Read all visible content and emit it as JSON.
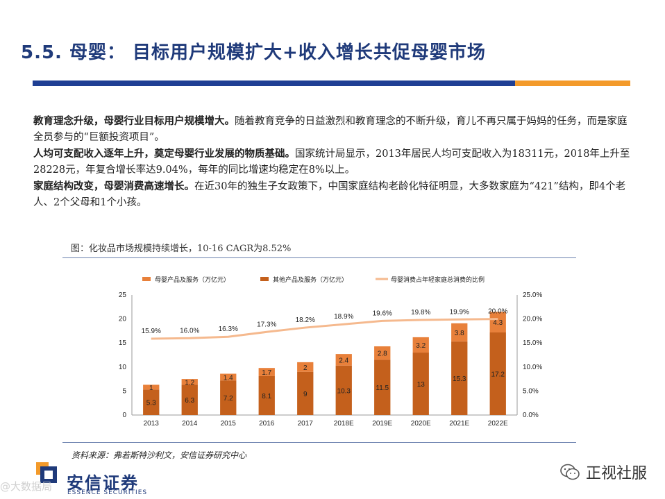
{
  "page": {
    "title": "5.5. 母婴： 目标用户规模扩大+收入增长共促母婴市场",
    "paragraphs": [
      {
        "bold": "教育理念升级，母婴行业目标用户规模增大。",
        "text": "随着教育竞争的日益激烈和教育理念的不断升级，育儿不再只属于妈妈的任务，而是家庭全员参与的“巨额投资项目”。"
      },
      {
        "bold": "人均可支配收入逐年上升，奠定母婴行业发展的物质基础。",
        "text": "国家统计局显示，2013年居民人均可支配收入为18311元，2018年上升至28228元，年复合增长率达9.04%，每年的同比增速均稳定在8%以上。"
      },
      {
        "bold": "家庭结构改变，母婴消费高速增长。",
        "text": "在近30年的独生子女政策下，中国家庭结构老龄化特征明显，大多数家庭为“421”结构，即4个老人、2个父母和1个小孩。"
      }
    ],
    "figure_caption": "图：化妆品市场规模持续增长，10-16 CAGR为8.52%",
    "source": "资料来源：弗若斯特沙利文，安信证券研究中心",
    "logo_cn": "安信证券",
    "logo_en": "ESSENCE SECURITIES",
    "watermark": "@大数据局",
    "wechat": "正视社服",
    "colors": {
      "title": "#1f3a7a",
      "blue_bar": "#1f3f94",
      "orange_bar": "#f39a2a",
      "series1": "#e8803a",
      "series2": "#c4601c",
      "line": "#f5b98e"
    }
  },
  "chart_data": {
    "type": "bar",
    "stacked": true,
    "categories": [
      "2013",
      "2014",
      "2015",
      "2016",
      "2017",
      "2018E",
      "2019E",
      "2020E",
      "2021E",
      "2022E"
    ],
    "series": [
      {
        "name": "其他产品及服务（万亿元）",
        "values": [
          5.3,
          6.3,
          7.2,
          8.1,
          9,
          10.3,
          11.5,
          13,
          15.3,
          17.2
        ],
        "axis": "left"
      },
      {
        "name": "母婴产品及服务（万亿元）",
        "values": [
          1,
          1.2,
          1.4,
          1.7,
          2,
          2.4,
          2.8,
          3.2,
          3.8,
          4.3
        ],
        "axis": "left"
      },
      {
        "name": "母婴消费占年轻家庭总消费的比例",
        "type": "line",
        "values": [
          15.9,
          16.0,
          16.3,
          17.3,
          18.2,
          18.9,
          19.6,
          19.8,
          19.9,
          20.0
        ],
        "labels": [
          "15.9%",
          "16.0%",
          "16.3%",
          "17.3%",
          "18.2%",
          "18.9%",
          "19.6%",
          "19.8%",
          "19.9%",
          "20.0%"
        ],
        "axis": "right"
      }
    ],
    "legend_order": [
      "母婴产品及服务（万亿元）",
      "其他产品及服务（万亿元）",
      "母婴消费占年轻家庭总消费的比例"
    ],
    "ylim": [
      0,
      25
    ],
    "yticks": [
      "0",
      "5",
      "10",
      "15",
      "20",
      "25"
    ],
    "y2lim": [
      0,
      25
    ],
    "y2ticks": [
      "0.0%",
      "5.0%",
      "10.0%",
      "15.0%",
      "20.0%",
      "25.0%"
    ],
    "legend_position": "top",
    "grid": false
  }
}
